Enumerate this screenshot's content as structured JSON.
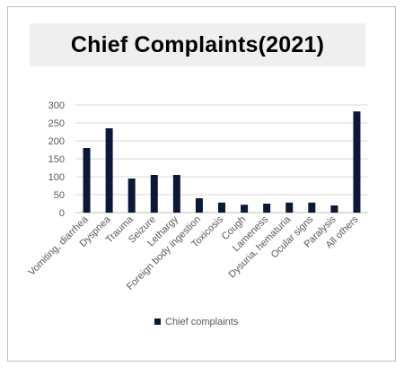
{
  "chart_data": {
    "type": "bar",
    "title": "Chief Complaints(2021)",
    "categories": [
      "Vomiting, diarrhea",
      "Dyspnea",
      "Trauma",
      "Seizure",
      "Lethargy",
      "Foreign body ingestion",
      "Toxicosis",
      "Cough",
      "Lameness",
      "Dysuria, hematuria",
      "Ocular signs",
      "Paralysis",
      "All others"
    ],
    "series": [
      {
        "name": "Chief complaints",
        "values": [
          180,
          235,
          95,
          105,
          105,
          40,
          28,
          22,
          25,
          28,
          28,
          20,
          282
        ]
      }
    ],
    "ylim": [
      0,
      300
    ],
    "yticks": [
      0,
      50,
      100,
      150,
      200,
      250,
      300
    ],
    "grid": true,
    "legend": "bottom",
    "colors": {
      "bar": "#0b1838",
      "grid": "#d9d9d9",
      "axis": "#bfbfbf"
    }
  }
}
